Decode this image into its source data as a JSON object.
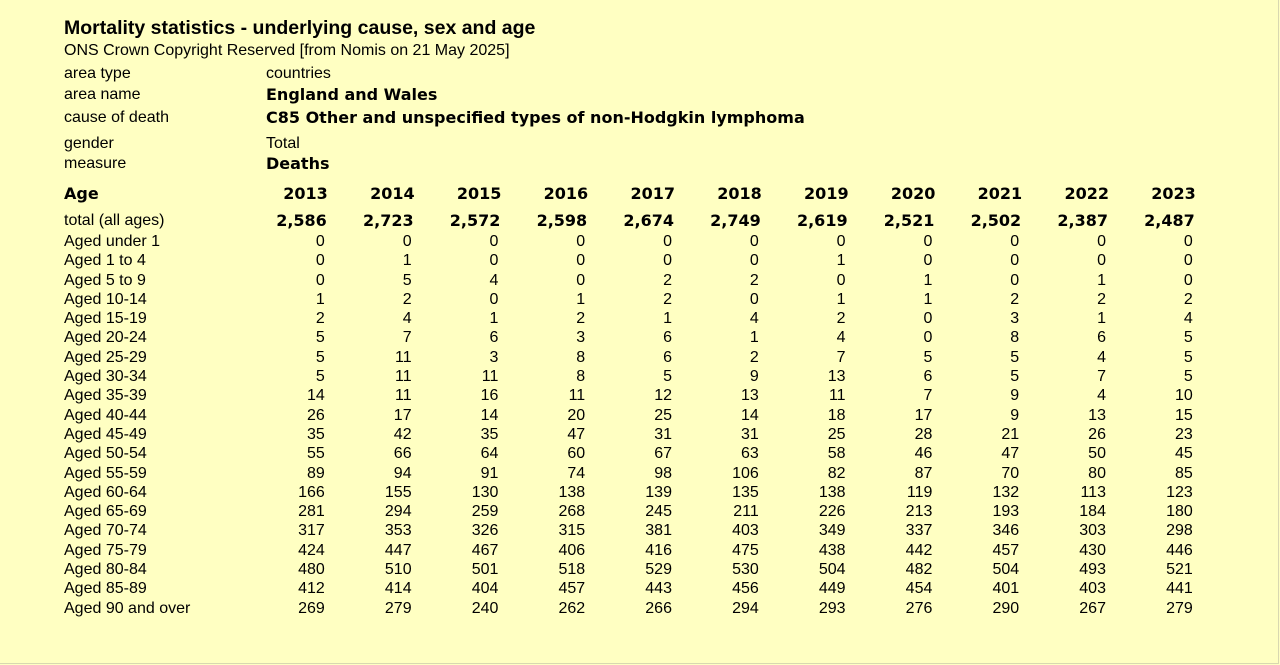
{
  "title": "Mortality statistics - underlying cause, sex and age",
  "source": "ONS Crown Copyright Reserved [from Nomis on 21 May 2025]",
  "meta": {
    "area_type": {
      "label": "area type",
      "value": "countries"
    },
    "area_name": {
      "label": "area name",
      "value": "England and Wales"
    },
    "cause": {
      "label": "cause of death",
      "value": "C85 Other and unspecified types of non-Hodgkin lymphoma"
    },
    "gender": {
      "label": "gender",
      "value": "Total"
    },
    "measure": {
      "label": "measure",
      "value": "Deaths"
    }
  },
  "table": {
    "age_header": "Age",
    "years": [
      "2013",
      "2014",
      "2015",
      "2016",
      "2017",
      "2018",
      "2019",
      "2020",
      "2021",
      "2022",
      "2023"
    ],
    "total": {
      "label": "total (all ages)",
      "values": [
        "2,586",
        "2,723",
        "2,572",
        "2,598",
        "2,674",
        "2,749",
        "2,619",
        "2,521",
        "2,502",
        "2,387",
        "2,487"
      ]
    },
    "rows": [
      {
        "label": "Aged under 1",
        "values": [
          "0",
          "0",
          "0",
          "0",
          "0",
          "0",
          "0",
          "0",
          "0",
          "0",
          "0"
        ]
      },
      {
        "label": "Aged 1 to 4",
        "values": [
          "0",
          "1",
          "0",
          "0",
          "0",
          "0",
          "1",
          "0",
          "0",
          "0",
          "0"
        ]
      },
      {
        "label": "Aged 5 to 9",
        "values": [
          "0",
          "5",
          "4",
          "0",
          "2",
          "2",
          "0",
          "1",
          "0",
          "1",
          "0"
        ]
      },
      {
        "label": "Aged 10-14",
        "values": [
          "1",
          "2",
          "0",
          "1",
          "2",
          "0",
          "1",
          "1",
          "2",
          "2",
          "2"
        ]
      },
      {
        "label": "Aged 15-19",
        "values": [
          "2",
          "4",
          "1",
          "2",
          "1",
          "4",
          "2",
          "0",
          "3",
          "1",
          "4"
        ]
      },
      {
        "label": "Aged 20-24",
        "values": [
          "5",
          "7",
          "6",
          "3",
          "6",
          "1",
          "4",
          "0",
          "8",
          "6",
          "5"
        ]
      },
      {
        "label": "Aged 25-29",
        "values": [
          "5",
          "11",
          "3",
          "8",
          "6",
          "2",
          "7",
          "5",
          "5",
          "4",
          "5"
        ]
      },
      {
        "label": "Aged 30-34",
        "values": [
          "5",
          "11",
          "11",
          "8",
          "5",
          "9",
          "13",
          "6",
          "5",
          "7",
          "5"
        ]
      },
      {
        "label": "Aged 35-39",
        "values": [
          "14",
          "11",
          "16",
          "11",
          "12",
          "13",
          "11",
          "7",
          "9",
          "4",
          "10"
        ]
      },
      {
        "label": "Aged 40-44",
        "values": [
          "26",
          "17",
          "14",
          "20",
          "25",
          "14",
          "18",
          "17",
          "9",
          "13",
          "15"
        ]
      },
      {
        "label": "Aged 45-49",
        "values": [
          "35",
          "42",
          "35",
          "47",
          "31",
          "31",
          "25",
          "28",
          "21",
          "26",
          "23"
        ]
      },
      {
        "label": "Aged 50-54",
        "values": [
          "55",
          "66",
          "64",
          "60",
          "67",
          "63",
          "58",
          "46",
          "47",
          "50",
          "45"
        ]
      },
      {
        "label": "Aged 55-59",
        "values": [
          "89",
          "94",
          "91",
          "74",
          "98",
          "106",
          "82",
          "87",
          "70",
          "80",
          "85"
        ]
      },
      {
        "label": "Aged 60-64",
        "values": [
          "166",
          "155",
          "130",
          "138",
          "139",
          "135",
          "138",
          "119",
          "132",
          "113",
          "123"
        ]
      },
      {
        "label": "Aged 65-69",
        "values": [
          "281",
          "294",
          "259",
          "268",
          "245",
          "211",
          "226",
          "213",
          "193",
          "184",
          "180"
        ]
      },
      {
        "label": "Aged 70-74",
        "values": [
          "317",
          "353",
          "326",
          "315",
          "381",
          "403",
          "349",
          "337",
          "346",
          "303",
          "298"
        ]
      },
      {
        "label": "Aged 75-79",
        "values": [
          "424",
          "447",
          "467",
          "406",
          "416",
          "475",
          "438",
          "442",
          "457",
          "430",
          "446"
        ]
      },
      {
        "label": "Aged 80-84",
        "values": [
          "480",
          "510",
          "501",
          "518",
          "529",
          "530",
          "504",
          "482",
          "504",
          "493",
          "521"
        ]
      },
      {
        "label": "Aged 85-89",
        "values": [
          "412",
          "414",
          "404",
          "457",
          "443",
          "456",
          "449",
          "454",
          "401",
          "403",
          "441"
        ]
      },
      {
        "label": "Aged 90 and over",
        "values": [
          "269",
          "279",
          "240",
          "262",
          "266",
          "294",
          "293",
          "276",
          "290",
          "267",
          "279"
        ]
      }
    ]
  }
}
